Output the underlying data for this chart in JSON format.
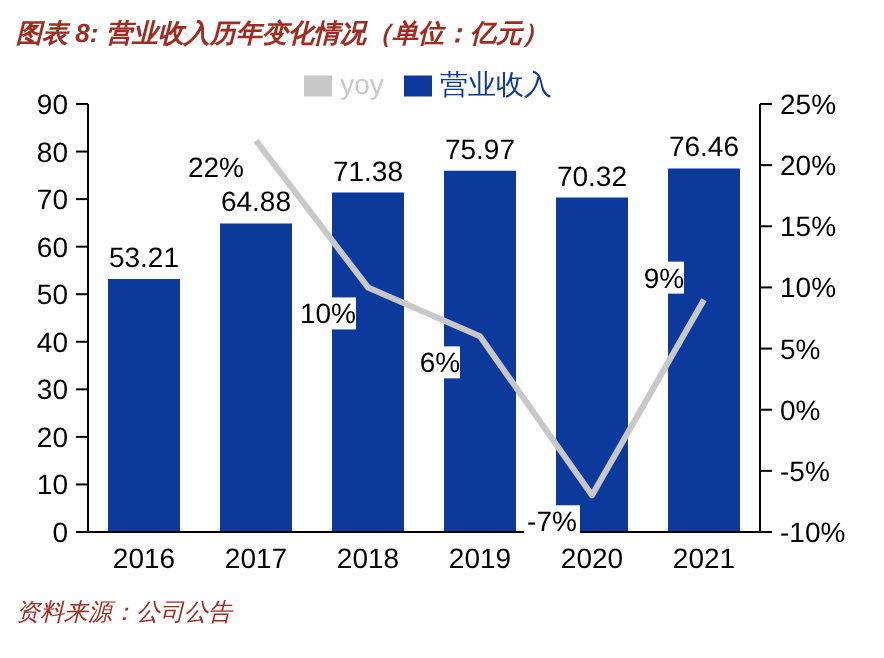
{
  "chart_data": {
    "type": "bar",
    "title": "图表 8:  营业收入历年变化情况（单位：亿元）",
    "annotations": [
      "资料来源：公司公告"
    ],
    "categories": [
      "2016",
      "2017",
      "2018",
      "2019",
      "2020",
      "2021"
    ],
    "series": [
      {
        "name": "营业收入",
        "color": "#0b3a9c",
        "values": [
          53.21,
          64.88,
          71.38,
          75.97,
          70.32,
          76.46
        ],
        "value_labels": [
          "53.21",
          "64.88",
          "71.38",
          "75.97",
          "70.32",
          "76.46"
        ]
      },
      {
        "name": "yoy",
        "type": "line",
        "axis": "y2",
        "color": "#c8c8c8",
        "values": [
          null,
          22,
          10,
          6,
          -7,
          9
        ],
        "value_labels": [
          null,
          "22%",
          "10%",
          "6%",
          "-7%",
          "9%"
        ]
      }
    ],
    "ylim": [
      0,
      90
    ],
    "yticks": [
      0,
      10,
      20,
      30,
      40,
      50,
      60,
      70,
      80,
      90
    ],
    "y2lim": [
      -10,
      25
    ],
    "y2ticks": [
      {
        "value": -10,
        "label": "-10%"
      },
      {
        "value": -5,
        "label": "-5%"
      },
      {
        "value": 0,
        "label": "0%"
      },
      {
        "value": 5,
        "label": "5%"
      },
      {
        "value": 10,
        "label": "10%"
      },
      {
        "value": 15,
        "label": "15%"
      },
      {
        "value": 20,
        "label": "20%"
      },
      {
        "value": 25,
        "label": "25%"
      }
    ],
    "grid": false,
    "legend": "top",
    "marker": "none",
    "line_style": "solid"
  }
}
